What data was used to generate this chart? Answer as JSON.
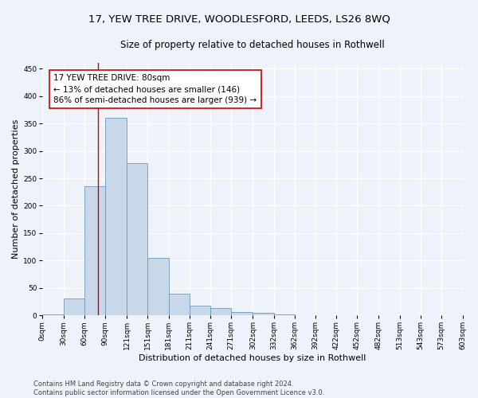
{
  "title": "17, YEW TREE DRIVE, WOODLESFORD, LEEDS, LS26 8WQ",
  "subtitle": "Size of property relative to detached houses in Rothwell",
  "xlabel": "Distribution of detached houses by size in Rothwell",
  "ylabel": "Number of detached properties",
  "bar_color": "#c8d8e8",
  "bar_edge_color": "#7098b8",
  "bins_start": [
    0,
    30,
    60,
    90,
    121,
    151,
    181,
    211,
    241,
    271,
    302,
    332,
    362,
    392,
    422,
    452,
    482,
    513,
    543,
    573
  ],
  "bin_labels": [
    "0sqm",
    "30sqm",
    "60sqm",
    "90sqm",
    "121sqm",
    "151sqm",
    "181sqm",
    "211sqm",
    "241sqm",
    "271sqm",
    "302sqm",
    "332sqm",
    "362sqm",
    "392sqm",
    "422sqm",
    "452sqm",
    "482sqm",
    "513sqm",
    "543sqm",
    "573sqm",
    "603sqm"
  ],
  "bar_heights": [
    2,
    30,
    235,
    360,
    278,
    105,
    40,
    18,
    13,
    6,
    5,
    1,
    0,
    0,
    0,
    0,
    0,
    0,
    0,
    0
  ],
  "annotation_text": "17 YEW TREE DRIVE: 80sqm\n← 13% of detached houses are smaller (146)\n86% of semi-detached houses are larger (939) →",
  "annotation_box_color": "#ffffff",
  "annotation_box_edge_color": "#cc0000",
  "vline_color": "#cc0000",
  "vline_x": 80,
  "ylim": [
    0,
    460
  ],
  "yticks": [
    0,
    50,
    100,
    150,
    200,
    250,
    300,
    350,
    400,
    450
  ],
  "footer_text": "Contains HM Land Registry data © Crown copyright and database right 2024.\nContains public sector information licensed under the Open Government Licence v3.0.",
  "bg_color": "#eef2fb",
  "grid_color": "#ffffff",
  "title_fontsize": 9.5,
  "subtitle_fontsize": 8.5,
  "tick_fontsize": 6.5,
  "ylabel_fontsize": 8,
  "xlabel_fontsize": 8,
  "annotation_fontsize": 7.5,
  "footer_fontsize": 6
}
